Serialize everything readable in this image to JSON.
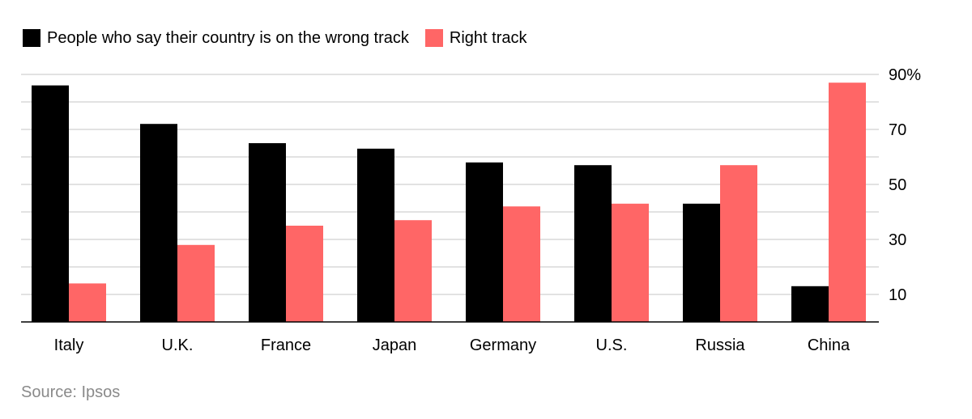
{
  "chart_data": {
    "type": "bar",
    "title": "",
    "xlabel": "",
    "ylabel": "",
    "categories": [
      "Italy",
      "U.K.",
      "France",
      "Japan",
      "Germany",
      "U.S.",
      "Russia",
      "China"
    ],
    "series": [
      {
        "name": "People who say their country is on the wrong track",
        "color": "#000000",
        "values": [
          86,
          72,
          65,
          63,
          58,
          57,
          43,
          13
        ]
      },
      {
        "name": "Right track",
        "color": "#ff6666",
        "values": [
          14,
          28,
          35,
          37,
          42,
          43,
          57,
          87
        ]
      }
    ],
    "ylim": [
      0,
      90
    ],
    "yticks": [
      10,
      30,
      50,
      70,
      90
    ],
    "ytick_labels": [
      "10",
      "30",
      "50",
      "70",
      "90%"
    ],
    "grid": true,
    "legend_position": "top-left"
  },
  "source": "Source: Ipsos"
}
